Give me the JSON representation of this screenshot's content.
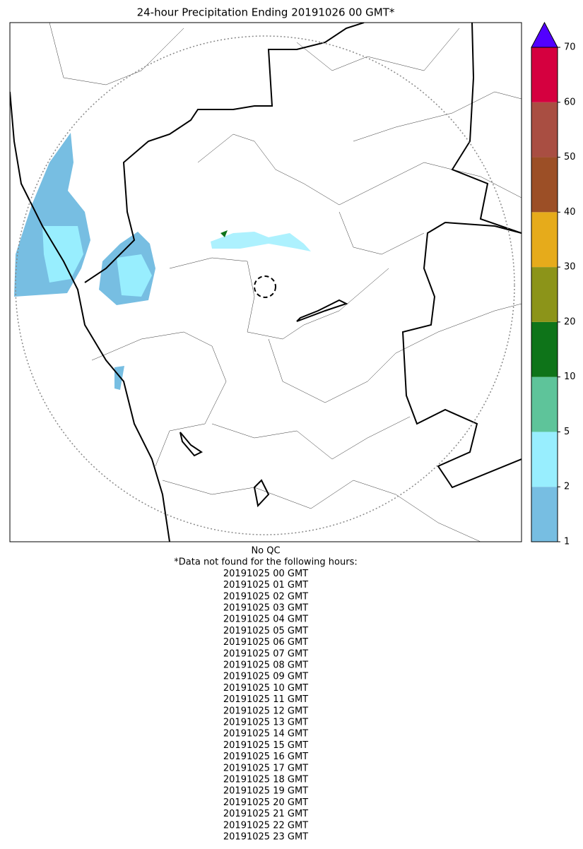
{
  "title": "24-hour Precipitation Ending 20191026 00 GMT*",
  "colorbar": {
    "ticks": [
      1,
      2,
      5,
      10,
      20,
      30,
      40,
      50,
      60,
      70
    ],
    "colors": [
      "#77bee2",
      "#98eefe",
      "#5ec49a",
      "#0e7419",
      "#8c9419",
      "#e6ab1b",
      "#9c4f26",
      "#a94e42",
      "#d5003f"
    ],
    "extend_color": "#5200ff"
  },
  "notes": [
    "No QC",
    "*Data not found for the following hours:",
    "20191025 00 GMT",
    "20191025 01 GMT",
    "20191025 02 GMT",
    "20191025 03 GMT",
    "20191025 04 GMT",
    "20191025 05 GMT",
    "20191025 06 GMT",
    "20191025 07 GMT",
    "20191025 08 GMT",
    "20191025 09 GMT",
    "20191025 10 GMT",
    "20191025 11 GMT",
    "20191025 12 GMT",
    "20191025 13 GMT",
    "20191025 14 GMT",
    "20191025 15 GMT",
    "20191025 16 GMT",
    "20191025 17 GMT",
    "20191025 18 GMT",
    "20191025 19 GMT",
    "20191025 20 GMT",
    "20191025 21 GMT",
    "20191025 22 GMT",
    "20191025 23 GMT"
  ]
}
